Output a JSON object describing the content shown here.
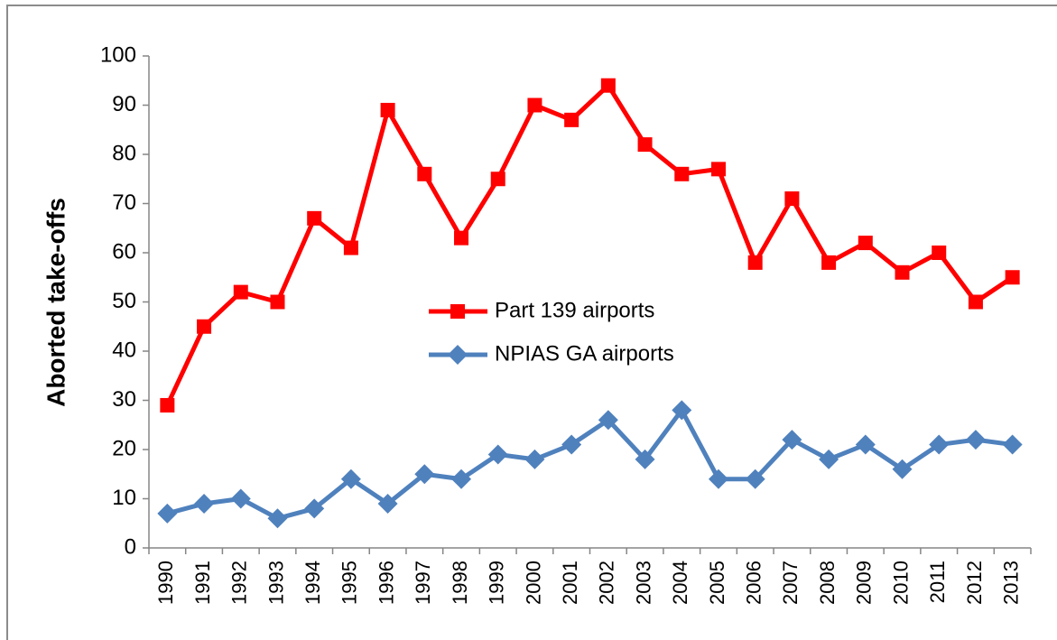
{
  "chart_data": {
    "type": "line",
    "y_label": "Aborted take-offs",
    "categories": [
      "1990",
      "1991",
      "1992",
      "1993",
      "1994",
      "1995",
      "1996",
      "1997",
      "1998",
      "1999",
      "2000",
      "2001",
      "2002",
      "2003",
      "2004",
      "2005",
      "2006",
      "2007",
      "2008",
      "2009",
      "2010",
      "2011",
      "2012",
      "2013"
    ],
    "series": [
      {
        "name": "Part 139 airports",
        "color": "#ff0000",
        "marker": "square",
        "values": [
          29,
          45,
          52,
          50,
          67,
          61,
          89,
          76,
          63,
          75,
          90,
          87,
          94,
          82,
          76,
          77,
          58,
          71,
          58,
          62,
          56,
          60,
          50,
          55
        ]
      },
      {
        "name": "NPIAS GA airports",
        "color": "#4f81bd",
        "marker": "diamond",
        "values": [
          7,
          9,
          10,
          6,
          8,
          14,
          9,
          15,
          14,
          19,
          18,
          21,
          26,
          18,
          28,
          14,
          14,
          22,
          18,
          21,
          16,
          21,
          22,
          21
        ]
      }
    ],
    "ylim": [
      0,
      100
    ],
    "yticks": [
      0,
      10,
      20,
      30,
      40,
      50,
      60,
      70,
      80,
      90,
      100
    ],
    "grid": false,
    "legend": "center"
  }
}
